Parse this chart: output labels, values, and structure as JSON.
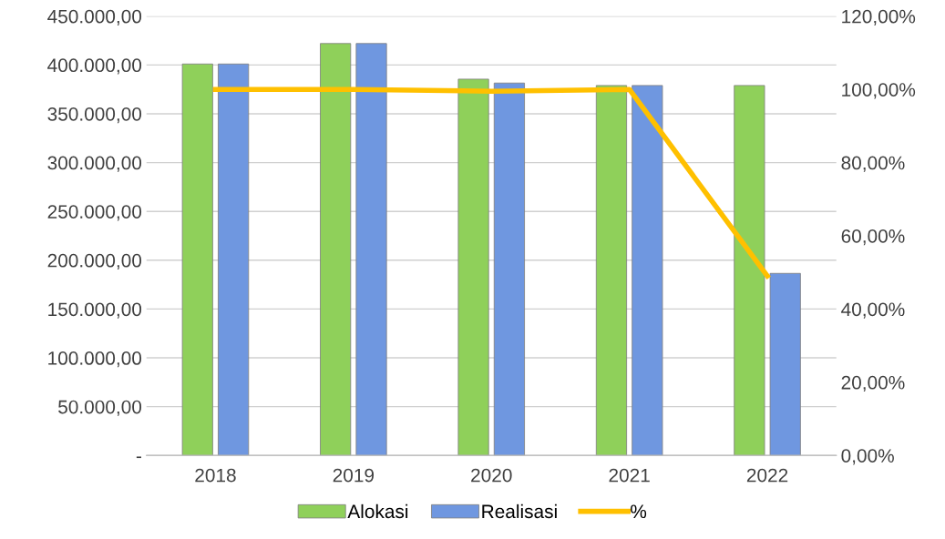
{
  "chart_data": {
    "type": "bar",
    "categories": [
      "2018",
      "2019",
      "2020",
      "2021",
      "2022"
    ],
    "series": [
      {
        "name": "Alokasi",
        "color": "#8fd05a",
        "values": [
          401000,
          422000,
          385500,
          379000,
          379000
        ]
      },
      {
        "name": "Realisasi",
        "color": "#6f97e0",
        "values": [
          401000,
          422000,
          381500,
          379000,
          186500
        ]
      },
      {
        "name": "%",
        "type": "line",
        "axis": "y2",
        "color": "#ffc000",
        "values": [
          100,
          100,
          99.5,
          100,
          49
        ]
      }
    ],
    "ylim": [
      0,
      450000
    ],
    "yticks": [
      {
        "value": 0,
        "label": "-"
      },
      {
        "value": 50000,
        "label": "50.000,00"
      },
      {
        "value": 100000,
        "label": "100.000,00"
      },
      {
        "value": 150000,
        "label": "150.000,00"
      },
      {
        "value": 200000,
        "label": "200.000,00"
      },
      {
        "value": 250000,
        "label": "250.000,00"
      },
      {
        "value": 300000,
        "label": "300.000,00"
      },
      {
        "value": 350000,
        "label": "350.000,00"
      },
      {
        "value": 400000,
        "label": "400.000,00"
      },
      {
        "value": 450000,
        "label": "450.000,00"
      }
    ],
    "y2lim": [
      0,
      120
    ],
    "y2ticks": [
      {
        "value": 0,
        "label": "0,00%"
      },
      {
        "value": 20,
        "label": "20,00%"
      },
      {
        "value": 40,
        "label": "40,00%"
      },
      {
        "value": 60,
        "label": "60,00%"
      },
      {
        "value": 80,
        "label": "80,00%"
      },
      {
        "value": 100,
        "label": "100,00%"
      },
      {
        "value": 120,
        "label": "120,00%"
      }
    ],
    "grid": "y",
    "legend": "bottom"
  }
}
